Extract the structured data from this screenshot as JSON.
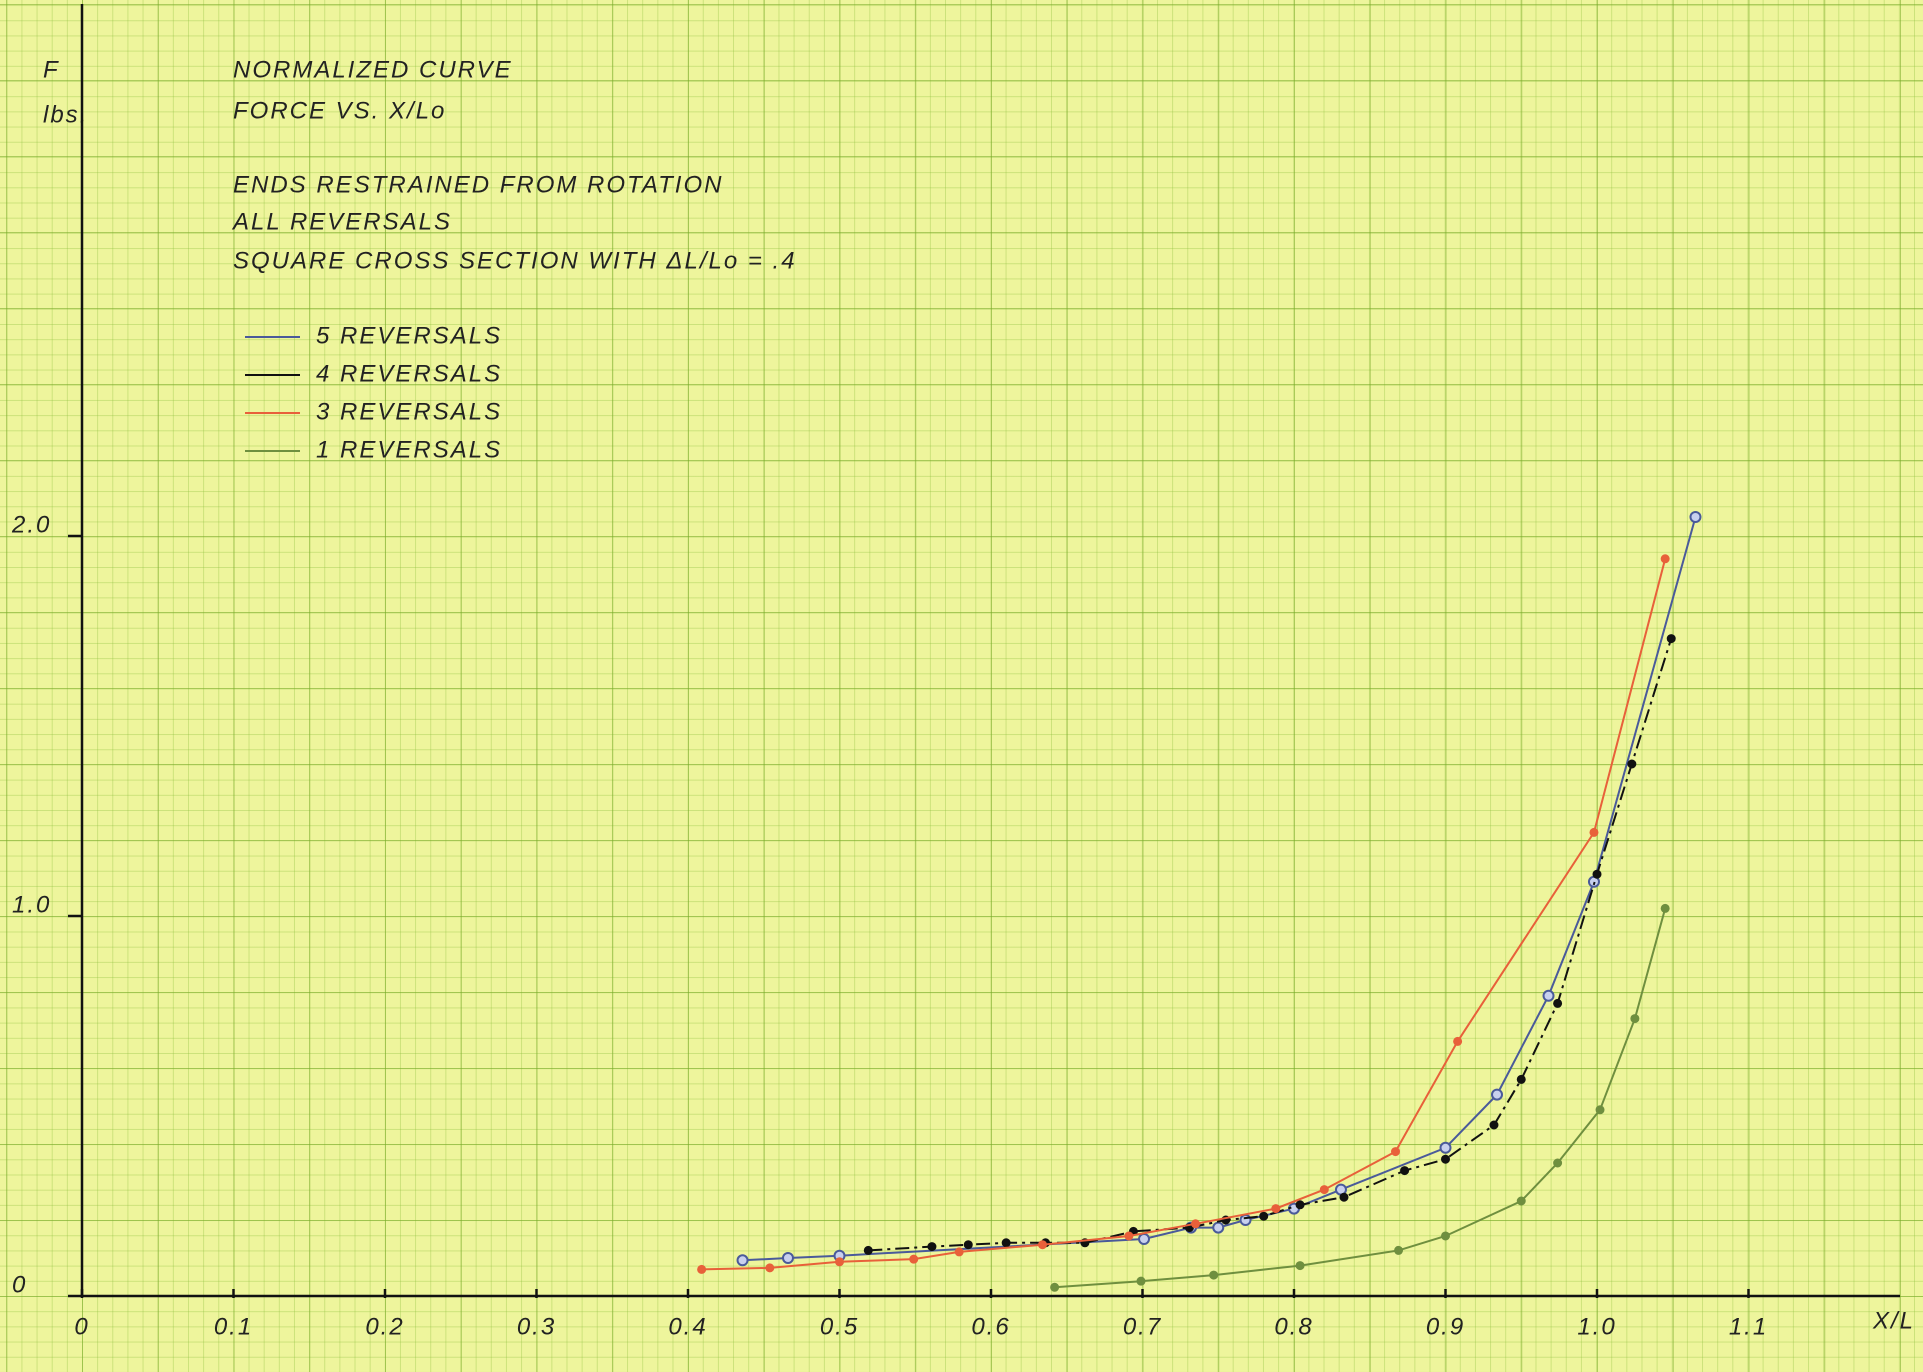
{
  "chart_data": {
    "type": "line",
    "y_label": "F",
    "y_unit": "lbs.",
    "x_label": "X/L",
    "title_lines": [
      "NORMALIZED CURVE",
      "FORCE VS. X/Lo",
      "ENDS RESTRAINED FROM ROTATION",
      "ALL REVERSALS",
      "SQUARE CROSS SECTION WITH ΔL/Lo = .4"
    ],
    "xlim": [
      0,
      1.2
    ],
    "ylim": [
      -0.2,
      3.4
    ],
    "xticks": [
      0,
      0.1,
      0.2,
      0.3,
      0.4,
      0.5,
      0.6,
      0.7,
      0.8,
      0.9,
      {
        "value": 1,
        "label": "1.0"
      },
      1.1
    ],
    "yticks": [
      0,
      {
        "value": 1,
        "label": "1.0"
      },
      {
        "value": 2,
        "label": "2.0"
      }
    ],
    "series": [
      {
        "name": "5 REVERSALS",
        "color": "#4a5a9a",
        "x": [
          0.436,
          0.466,
          0.5,
          0.701,
          0.732,
          0.75,
          0.768,
          0.8,
          0.831,
          0.9,
          0.934,
          0.968,
          0.998,
          1.065
        ],
        "values": [
          0.094,
          0.1,
          0.106,
          0.15,
          0.18,
          0.18,
          0.2,
          0.23,
          0.28,
          0.39,
          0.53,
          0.79,
          1.09,
          2.05
        ]
      },
      {
        "name": "4 REVERSALS",
        "color": "#111111",
        "x": [
          0.519,
          0.561,
          0.585,
          0.61,
          0.636,
          0.662,
          0.694,
          0.731,
          0.755,
          0.78,
          0.804,
          0.833,
          0.873,
          0.9,
          0.932,
          0.95,
          0.974,
          1.0,
          1.023,
          1.049
        ],
        "values": [
          0.12,
          0.13,
          0.135,
          0.14,
          0.14,
          0.14,
          0.17,
          0.18,
          0.2,
          0.21,
          0.24,
          0.26,
          0.33,
          0.36,
          0.45,
          0.57,
          0.77,
          1.11,
          1.4,
          1.73
        ]
      },
      {
        "name": "3 REVERSALS",
        "color": "#e8603a",
        "x": [
          0.409,
          0.454,
          0.5,
          0.549,
          0.579,
          0.634,
          0.691,
          0.735,
          0.788,
          0.82,
          0.867,
          0.908,
          0.998,
          1.045
        ],
        "values": [
          0.07,
          0.074,
          0.09,
          0.097,
          0.116,
          0.135,
          0.158,
          0.19,
          0.23,
          0.28,
          0.38,
          0.67,
          1.22,
          1.94
        ]
      },
      {
        "name": "1 REVERSALS",
        "color": "#6f8f3f",
        "x": [
          0.642,
          0.699,
          0.747,
          0.804,
          0.869,
          0.9,
          0.95,
          0.974,
          1.002,
          1.025,
          1.045
        ],
        "values": [
          0.023,
          0.039,
          0.055,
          0.08,
          0.12,
          0.158,
          0.25,
          0.35,
          0.49,
          0.73,
          1.02
        ]
      }
    ]
  }
}
